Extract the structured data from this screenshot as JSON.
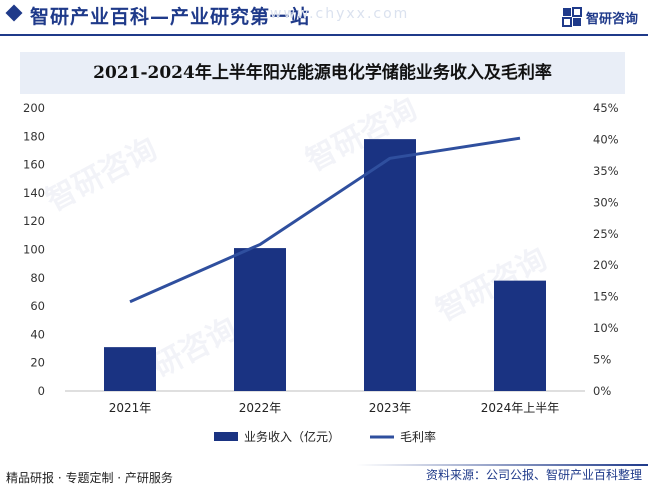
{
  "header": {
    "site_title": "智研产业百科—产业研究第一站",
    "ghost_text": "www.chyxx.com",
    "logo_text": "智研咨询"
  },
  "colors": {
    "bar": "#1a3382",
    "line": "#2f4f9e",
    "brand": "#1f3a8a"
  },
  "chart_data": {
    "type": "bar",
    "title": "2021-2024年上半年阳光能源电化学储能业务收入及毛利率",
    "categories": [
      "2021年",
      "2022年",
      "2023年",
      "2024年上半年"
    ],
    "series": [
      {
        "name": "业务收入（亿元）",
        "type": "bar",
        "axis": "left",
        "values": [
          31,
          101,
          178,
          78
        ]
      },
      {
        "name": "毛利率",
        "type": "line",
        "axis": "right",
        "values": [
          14.2,
          23.3,
          37.0,
          40.2
        ]
      }
    ],
    "y_left": {
      "min": 0,
      "max": 200,
      "ticks": [
        "0",
        "20",
        "40",
        "60",
        "80",
        "100",
        "120",
        "140",
        "160",
        "180",
        "200"
      ]
    },
    "y_right": {
      "min": 0,
      "max": 45,
      "ticks": [
        "0%",
        "5%",
        "10%",
        "15%",
        "20%",
        "25%",
        "30%",
        "35%",
        "40%",
        "45%"
      ]
    },
    "legend_position": "bottom-center",
    "grid": false
  },
  "footer": {
    "left": "精品研报 · 专题定制 · 产研服务",
    "right": "资料来源：公司公报、智研产业百科整理"
  }
}
